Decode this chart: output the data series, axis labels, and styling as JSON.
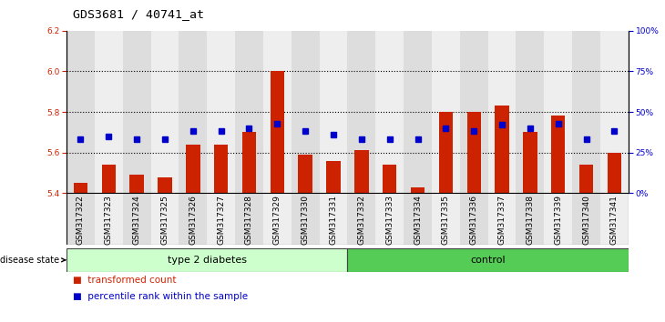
{
  "title": "GDS3681 / 40741_at",
  "samples": [
    "GSM317322",
    "GSM317323",
    "GSM317324",
    "GSM317325",
    "GSM317326",
    "GSM317327",
    "GSM317328",
    "GSM317329",
    "GSM317330",
    "GSM317331",
    "GSM317332",
    "GSM317333",
    "GSM317334",
    "GSM317335",
    "GSM317336",
    "GSM317337",
    "GSM317338",
    "GSM317339",
    "GSM317340",
    "GSM317341"
  ],
  "red_values": [
    5.45,
    5.54,
    5.49,
    5.48,
    5.64,
    5.64,
    5.7,
    6.0,
    5.59,
    5.56,
    5.61,
    5.54,
    5.43,
    5.8,
    5.8,
    5.83,
    5.7,
    5.78,
    5.54,
    5.6
  ],
  "blue_values_pct": [
    33,
    35,
    33,
    33,
    38,
    38,
    40,
    43,
    38,
    36,
    33,
    33,
    33,
    40,
    38,
    42,
    40,
    43,
    33,
    38
  ],
  "ylim_left": [
    5.4,
    6.2
  ],
  "ylim_right": [
    0,
    100
  ],
  "yticks_left": [
    5.4,
    5.6,
    5.8,
    6.0,
    6.2
  ],
  "yticks_right": [
    0,
    25,
    50,
    75,
    100
  ],
  "ytick_labels_right": [
    "0%",
    "25%",
    "50%",
    "75%",
    "100%"
  ],
  "group1_label": "type 2 diabetes",
  "group1_count": 10,
  "group2_label": "control",
  "group2_count": 10,
  "disease_state_label": "disease state",
  "legend_red": "transformed count",
  "legend_blue": "percentile rank within the sample",
  "bar_color": "#cc2200",
  "blue_color": "#0000cc",
  "group1_bg": "#ccffcc",
  "group2_bg": "#55cc55",
  "col_bg_even": "#dddddd",
  "col_bg_odd": "#eeeeee",
  "base_value": 5.4,
  "bar_width": 0.5,
  "title_fontsize": 9.5,
  "tick_fontsize": 6.5,
  "label_fontsize": 8
}
